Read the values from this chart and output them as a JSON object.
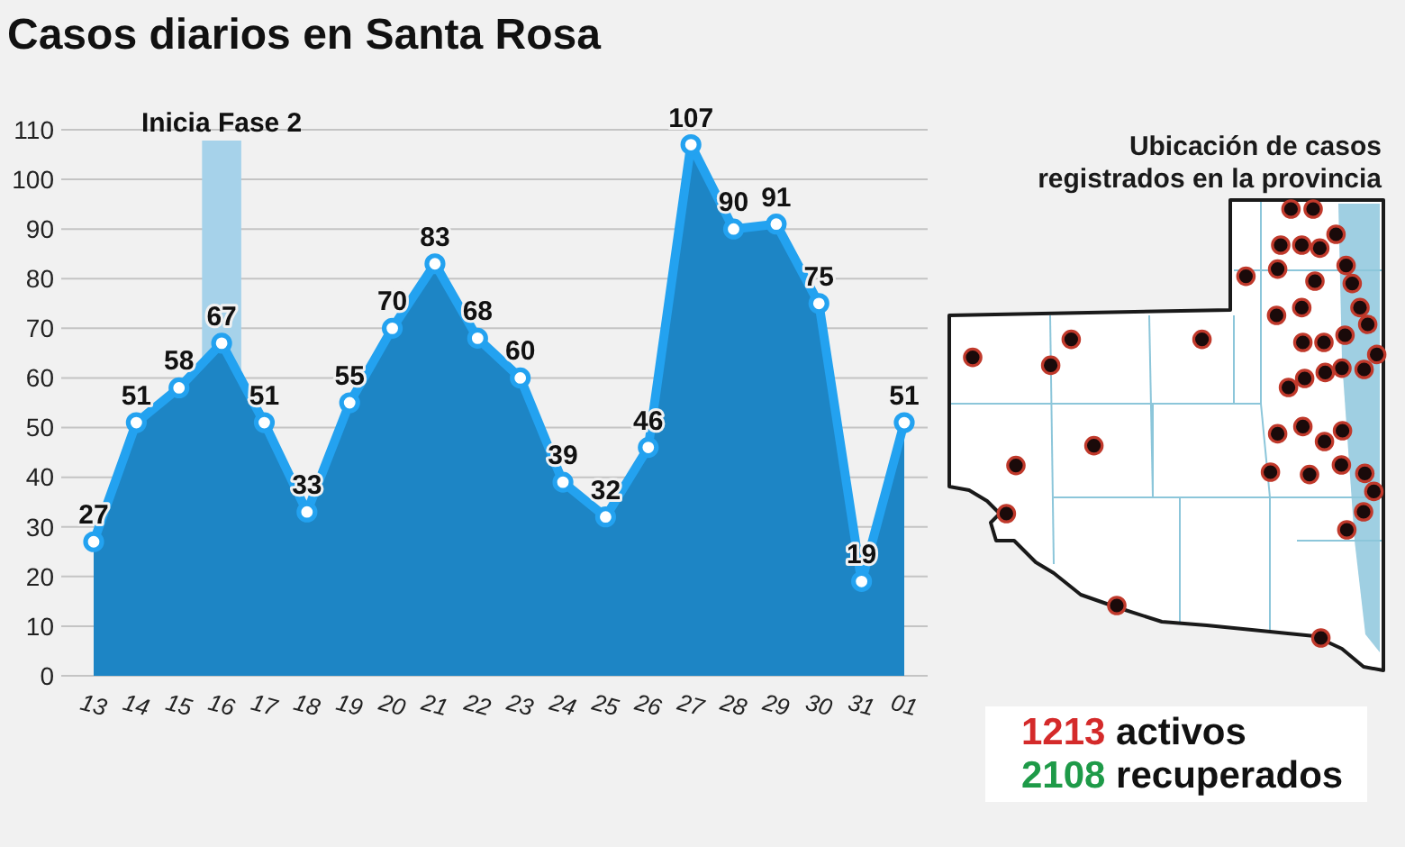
{
  "chart_data": {
    "type": "area",
    "title": "Casos diarios en Santa Rosa",
    "categories": [
      "13",
      "14",
      "15",
      "16",
      "17",
      "18",
      "19",
      "20",
      "21",
      "22",
      "23",
      "24",
      "25",
      "26",
      "27",
      "28",
      "29",
      "30",
      "31",
      "01"
    ],
    "values": [
      27,
      51,
      58,
      67,
      51,
      33,
      55,
      70,
      83,
      68,
      60,
      39,
      32,
      46,
      107,
      90,
      91,
      75,
      19,
      51
    ],
    "color": "#1d85c5",
    "marker": "circle",
    "data_labels": true,
    "grid": "y",
    "ylim": [
      0,
      110
    ],
    "yticks": [
      0,
      10,
      20,
      30,
      40,
      50,
      60,
      70,
      80,
      90,
      100,
      110
    ],
    "ref_lines": [
      {
        "axis": "x",
        "value": "16",
        "label": "Inicia Fase 2",
        "color": "#a6d2ea"
      }
    ],
    "annotations": [
      "Ubicación de casos\nregistrados en la provincia",
      "1213 activos",
      "2108 recuperados"
    ]
  }
}
